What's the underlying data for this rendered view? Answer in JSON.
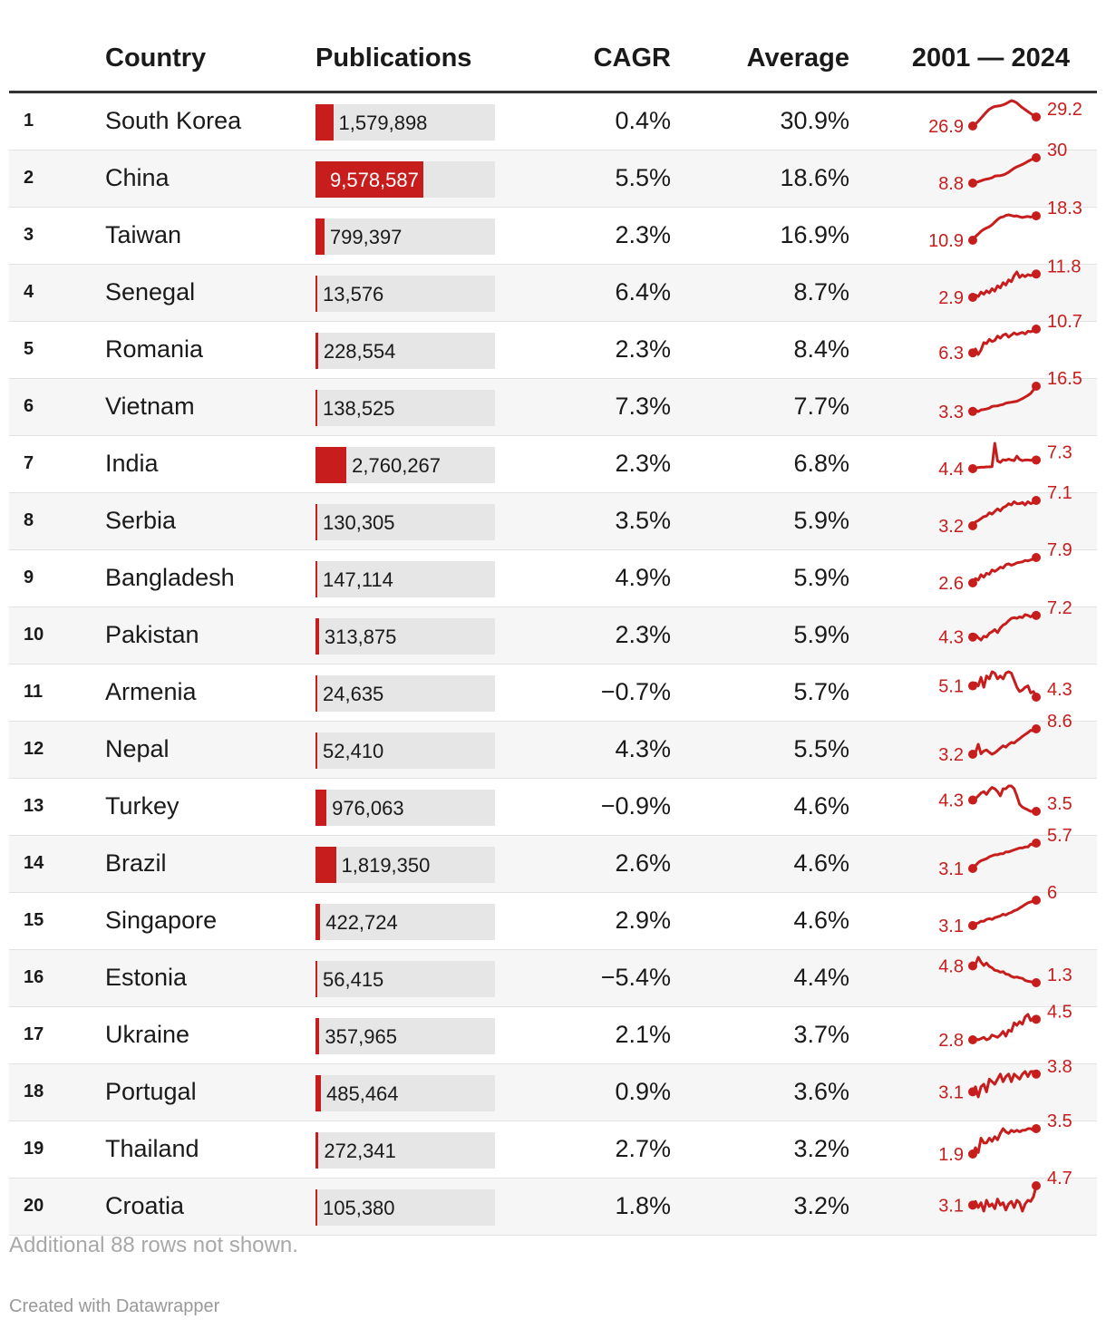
{
  "header": {
    "country": "Country",
    "publications": "Publications",
    "cagr": "CAGR",
    "average": "Average",
    "trend": "2001 — 2024"
  },
  "colors": {
    "accent": "#c71e1d",
    "bar_bg": "#e6e6e6",
    "text": "#1a1a1a",
    "muted": "#a8a8a8"
  },
  "chart_data": {
    "type": "table",
    "columns": [
      "Country",
      "Publications",
      "CAGR",
      "Average",
      "2001 — 2024"
    ],
    "publications_scale_max": 16000000,
    "rows": [
      {
        "rank": "1",
        "country": "South Korea",
        "publications": 1579898,
        "publications_label": "1,579,898",
        "cagr": "0.4%",
        "average": "30.9%",
        "spark_start": "26.9",
        "spark_end": "29.2",
        "spark": [
          26.9,
          27.4,
          28.1,
          28.9,
          29.7,
          30.5,
          31.2,
          31.6,
          31.9,
          32.0,
          32.1,
          32.3,
          32.6,
          33.0,
          33.4,
          33.2,
          32.8,
          32.2,
          31.6,
          31.1,
          30.6,
          30.1,
          29.6,
          29.2
        ]
      },
      {
        "rank": "2",
        "country": "China",
        "publications": 9578587,
        "publications_label": "9,578,587",
        "cagr": "5.5%",
        "average": "18.6%",
        "spark_start": "8.8",
        "spark_end": "30",
        "spark": [
          8.8,
          9.2,
          10.0,
          10.8,
          11.6,
          12.1,
          12.6,
          13.3,
          14.6,
          14.9,
          15.1,
          15.6,
          16.6,
          17.9,
          19.6,
          21.2,
          22.4,
          23.4,
          24.4,
          25.6,
          27.0,
          28.2,
          29.2,
          30.0
        ]
      },
      {
        "rank": "3",
        "country": "Taiwan",
        "publications": 799397,
        "publications_label": "799,397",
        "cagr": "2.3%",
        "average": "16.9%",
        "spark_start": "10.9",
        "spark_end": "18.3",
        "spark": [
          10.9,
          12.0,
          12.8,
          13.6,
          14.2,
          14.6,
          15.0,
          15.6,
          16.4,
          17.2,
          17.8,
          18.0,
          18.4,
          18.6,
          18.4,
          18.2,
          18.3,
          18.0,
          17.8,
          18.0,
          18.1,
          17.9,
          18.2,
          18.3
        ]
      },
      {
        "rank": "4",
        "country": "Senegal",
        "publications": 13576,
        "publications_label": "13,576",
        "cagr": "6.4%",
        "average": "8.7%",
        "spark_start": "2.9",
        "spark_end": "11.8",
        "spark": [
          2.9,
          3.8,
          3.2,
          4.9,
          4.1,
          5.4,
          4.6,
          6.2,
          5.3,
          7.3,
          6.5,
          8.5,
          7.6,
          9.6,
          8.9,
          11.2,
          12.6,
          10.5,
          11.5,
          10.8,
          11.6,
          11.2,
          11.7,
          11.8
        ]
      },
      {
        "rank": "5",
        "country": "Romania",
        "publications": 228554,
        "publications_label": "228,554",
        "cagr": "2.3%",
        "average": "8.4%",
        "spark_start": "6.3",
        "spark_end": "10.7",
        "spark": [
          6.3,
          7.0,
          6.0,
          6.8,
          8.2,
          8.0,
          8.8,
          8.4,
          8.6,
          9.4,
          9.0,
          9.6,
          9.8,
          9.2,
          9.6,
          10.0,
          9.7,
          9.9,
          10.1,
          9.8,
          10.3,
          10.2,
          10.4,
          10.7
        ]
      },
      {
        "rank": "6",
        "country": "Vietnam",
        "publications": 138525,
        "publications_label": "138,525",
        "cagr": "7.3%",
        "average": "7.7%",
        "spark_start": "3.3",
        "spark_end": "16.5",
        "spark": [
          3.3,
          4.0,
          3.2,
          4.1,
          4.3,
          4.6,
          5.0,
          5.9,
          6.1,
          6.2,
          6.6,
          6.9,
          7.6,
          7.9,
          8.1,
          8.4,
          8.6,
          9.3,
          10.0,
          10.8,
          11.7,
          12.7,
          14.6,
          16.5
        ]
      },
      {
        "rank": "7",
        "country": "India",
        "publications": 2760267,
        "publications_label": "2,760,267",
        "cagr": "2.3%",
        "average": "6.8%",
        "spark_start": "4.4",
        "spark_end": "7.3",
        "spark": [
          4.4,
          4.7,
          4.8,
          4.9,
          4.9,
          5.0,
          5.0,
          5.1,
          12.9,
          7.0,
          6.5,
          7.4,
          7.2,
          7.6,
          7.3,
          7.1,
          8.6,
          7.5,
          7.1,
          7.3,
          7.3,
          7.2,
          7.4,
          7.3
        ]
      },
      {
        "rank": "8",
        "country": "Serbia",
        "publications": 130305,
        "publications_label": "130,305",
        "cagr": "3.5%",
        "average": "5.9%",
        "spark_start": "3.2",
        "spark_end": "7.1",
        "spark": [
          3.2,
          3.8,
          4.0,
          4.3,
          4.6,
          4.7,
          5.2,
          5.0,
          5.4,
          5.8,
          5.5,
          6.0,
          6.2,
          6.6,
          6.4,
          6.9,
          6.6,
          6.6,
          6.8,
          6.4,
          6.9,
          6.6,
          6.8,
          7.1
        ]
      },
      {
        "rank": "9",
        "country": "Bangladesh",
        "publications": 147114,
        "publications_label": "147,114",
        "cagr": "4.9%",
        "average": "5.9%",
        "spark_start": "2.6",
        "spark_end": "7.9",
        "spark": [
          2.6,
          3.5,
          3.2,
          4.3,
          3.8,
          4.6,
          4.4,
          5.3,
          5.0,
          5.4,
          5.9,
          5.7,
          6.4,
          6.6,
          6.3,
          6.5,
          6.8,
          6.9,
          7.0,
          7.3,
          7.2,
          7.4,
          7.6,
          7.9
        ]
      },
      {
        "rank": "10",
        "country": "Pakistan",
        "publications": 313875,
        "publications_label": "313,875",
        "cagr": "2.3%",
        "average": "5.9%",
        "spark_start": "4.3",
        "spark_end": "7.2",
        "spark": [
          4.3,
          4.6,
          4.2,
          3.9,
          4.4,
          4.3,
          4.8,
          5.0,
          5.3,
          4.9,
          5.5,
          5.9,
          6.1,
          6.5,
          6.8,
          6.9,
          6.8,
          7.0,
          6.9,
          7.3,
          7.2,
          7.0,
          7.3,
          7.2
        ]
      },
      {
        "rank": "11",
        "country": "Armenia",
        "publications": 24635,
        "publications_label": "24,635",
        "cagr": "−0.7%",
        "average": "5.7%",
        "spark_start": "5.1",
        "spark_end": "4.3",
        "spark": [
          5.1,
          5.3,
          5.1,
          5.7,
          5.0,
          5.8,
          5.6,
          6.1,
          6.0,
          5.6,
          5.8,
          5.6,
          6.0,
          6.1,
          6.0,
          5.5,
          5.0,
          4.7,
          4.8,
          5.0,
          5.1,
          4.6,
          4.7,
          4.3
        ]
      },
      {
        "rank": "12",
        "country": "Nepal",
        "publications": 52410,
        "publications_label": "52,410",
        "cagr": "4.3%",
        "average": "5.5%",
        "spark_start": "3.2",
        "spark_end": "8.6",
        "spark": [
          3.2,
          3.5,
          5.3,
          3.3,
          3.9,
          4.1,
          3.6,
          3.2,
          3.5,
          4.0,
          4.5,
          5.0,
          4.7,
          5.3,
          5.7,
          5.6,
          6.1,
          6.5,
          7.0,
          7.4,
          7.8,
          8.3,
          8.2,
          8.6
        ]
      },
      {
        "rank": "13",
        "country": "Turkey",
        "publications": 976063,
        "publications_label": "976,063",
        "cagr": "−0.9%",
        "average": "4.6%",
        "spark_start": "4.3",
        "spark_end": "3.5",
        "spark": [
          4.3,
          4.4,
          4.6,
          4.8,
          4.9,
          4.7,
          5.0,
          5.2,
          5.1,
          4.9,
          4.6,
          5.1,
          5.1,
          5.3,
          5.3,
          5.1,
          4.6,
          4.0,
          3.8,
          3.7,
          3.6,
          3.5,
          3.5,
          3.5
        ]
      },
      {
        "rank": "14",
        "country": "Brazil",
        "publications": 1819350,
        "publications_label": "1,819,350",
        "cagr": "2.6%",
        "average": "4.6%",
        "spark_start": "3.1",
        "spark_end": "5.7",
        "spark": [
          3.1,
          3.4,
          3.7,
          3.9,
          4.0,
          4.1,
          4.3,
          4.4,
          4.5,
          4.5,
          4.6,
          4.6,
          4.8,
          4.8,
          4.9,
          5.0,
          5.1,
          5.2,
          5.2,
          5.3,
          5.3,
          5.6,
          5.5,
          5.7
        ]
      },
      {
        "rank": "15",
        "country": "Singapore",
        "publications": 422724,
        "publications_label": "422,724",
        "cagr": "2.9%",
        "average": "4.6%",
        "spark_start": "3.1",
        "spark_end": "6",
        "spark": [
          3.1,
          3.3,
          3.4,
          3.6,
          3.6,
          3.8,
          3.9,
          3.8,
          4.0,
          4.1,
          4.2,
          4.4,
          4.3,
          4.5,
          4.6,
          4.8,
          4.9,
          5.1,
          5.3,
          5.5,
          5.7,
          5.8,
          5.9,
          6.0
        ]
      },
      {
        "rank": "16",
        "country": "Estonia",
        "publications": 56415,
        "publications_label": "56,415",
        "cagr": "−5.4%",
        "average": "4.4%",
        "spark_start": "4.8",
        "spark_end": "1.3",
        "spark": [
          4.8,
          5.1,
          6.6,
          5.6,
          4.9,
          5.4,
          4.7,
          4.4,
          3.9,
          3.8,
          3.5,
          3.6,
          3.1,
          3.0,
          2.6,
          2.4,
          2.5,
          2.3,
          2.2,
          1.8,
          1.6,
          1.5,
          1.4,
          1.3
        ]
      },
      {
        "rank": "17",
        "country": "Ukraine",
        "publications": 357965,
        "publications_label": "357,965",
        "cagr": "2.1%",
        "average": "3.7%",
        "spark_start": "2.8",
        "spark_end": "4.5",
        "spark": [
          2.8,
          2.9,
          2.8,
          2.9,
          3.0,
          2.8,
          2.9,
          3.2,
          3.1,
          3.0,
          3.2,
          3.5,
          3.1,
          3.6,
          3.5,
          4.2,
          4.0,
          4.3,
          4.1,
          4.7,
          4.9,
          4.4,
          4.6,
          4.5
        ]
      },
      {
        "rank": "18",
        "country": "Portugal",
        "publications": 485464,
        "publications_label": "485,464",
        "cagr": "0.9%",
        "average": "3.6%",
        "spark_start": "3.1",
        "spark_end": "3.8",
        "spark": [
          3.1,
          3.3,
          2.9,
          3.3,
          3.4,
          3.1,
          3.6,
          3.5,
          3.4,
          3.6,
          3.8,
          3.5,
          3.7,
          3.8,
          3.5,
          3.8,
          3.7,
          3.6,
          3.8,
          3.9,
          3.7,
          3.9,
          3.9,
          3.8
        ]
      },
      {
        "rank": "19",
        "country": "Thailand",
        "publications": 272341,
        "publications_label": "272,341",
        "cagr": "2.7%",
        "average": "3.2%",
        "spark_start": "1.9",
        "spark_end": "3.5",
        "spark": [
          1.9,
          2.3,
          2.0,
          2.9,
          2.6,
          2.6,
          2.9,
          2.7,
          3.0,
          2.8,
          3.2,
          3.5,
          3.3,
          3.2,
          3.4,
          3.3,
          3.4,
          3.3,
          3.4,
          3.4,
          3.5,
          3.5,
          3.4,
          3.5
        ]
      },
      {
        "rank": "20",
        "country": "Croatia",
        "publications": 105380,
        "publications_label": "105,380",
        "cagr": "1.8%",
        "average": "3.2%",
        "spark_start": "3.1",
        "spark_end": "4.7",
        "spark": [
          3.1,
          3.4,
          2.9,
          3.3,
          2.6,
          3.5,
          3.0,
          3.2,
          2.8,
          3.6,
          3.1,
          3.3,
          2.7,
          3.2,
          3.4,
          2.9,
          3.5,
          3.3,
          2.6,
          3.2,
          3.5,
          3.4,
          3.8,
          4.7
        ]
      }
    ]
  },
  "footnote": "Additional 88 rows not shown.",
  "credit": "Created with Datawrapper"
}
